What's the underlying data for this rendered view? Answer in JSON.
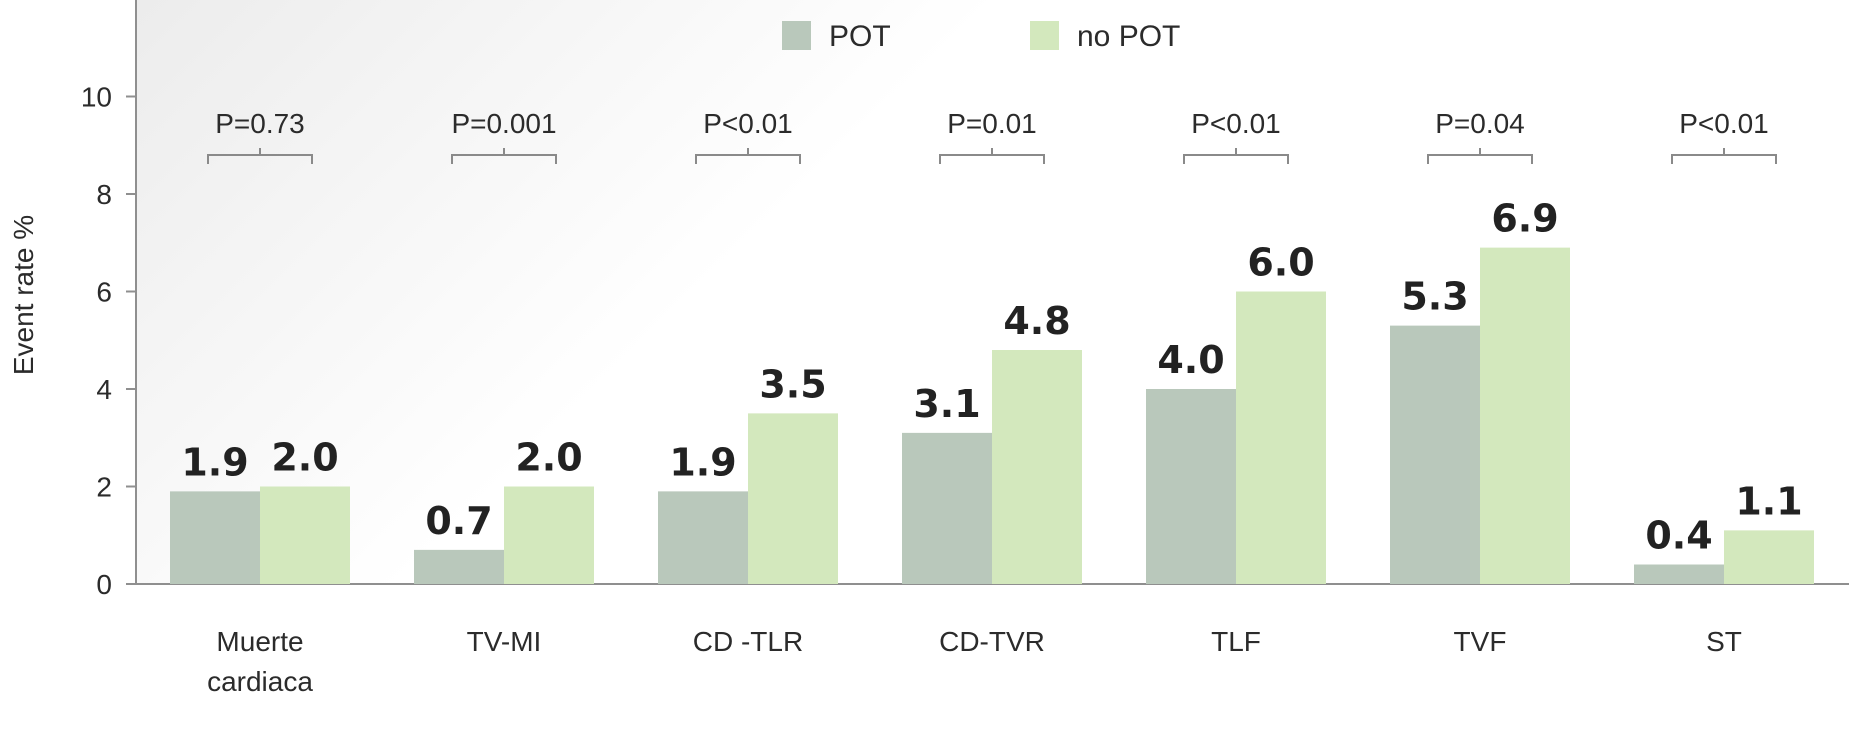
{
  "chart_data": {
    "type": "bar",
    "ylabel": "Event rate %",
    "xlabel": "",
    "ylim": [
      0,
      12
    ],
    "yticks": [
      0,
      2,
      4,
      6,
      8,
      10
    ],
    "grid": false,
    "legend_position": "top-center",
    "categories": [
      [
        "Muerte",
        "cardiaca"
      ],
      [
        "TV-MI"
      ],
      [
        "CD -TLR"
      ],
      [
        "CD-TVR"
      ],
      [
        "TLF"
      ],
      [
        "TVF"
      ],
      [
        "ST"
      ]
    ],
    "series": [
      {
        "name": "POT",
        "color": "#b9c8bb",
        "values": [
          1.9,
          0.7,
          1.9,
          3.1,
          4.0,
          5.3,
          0.4
        ]
      },
      {
        "name": "no POT",
        "color": "#d3e8bd",
        "values": [
          2.0,
          2.0,
          3.5,
          4.8,
          6.0,
          6.9,
          1.1
        ]
      }
    ],
    "p_values": [
      "P=0.73",
      "P=0.001",
      "P<0.01",
      "P=0.01",
      "P<0.01",
      "P=0.04",
      "P<0.01"
    ]
  }
}
